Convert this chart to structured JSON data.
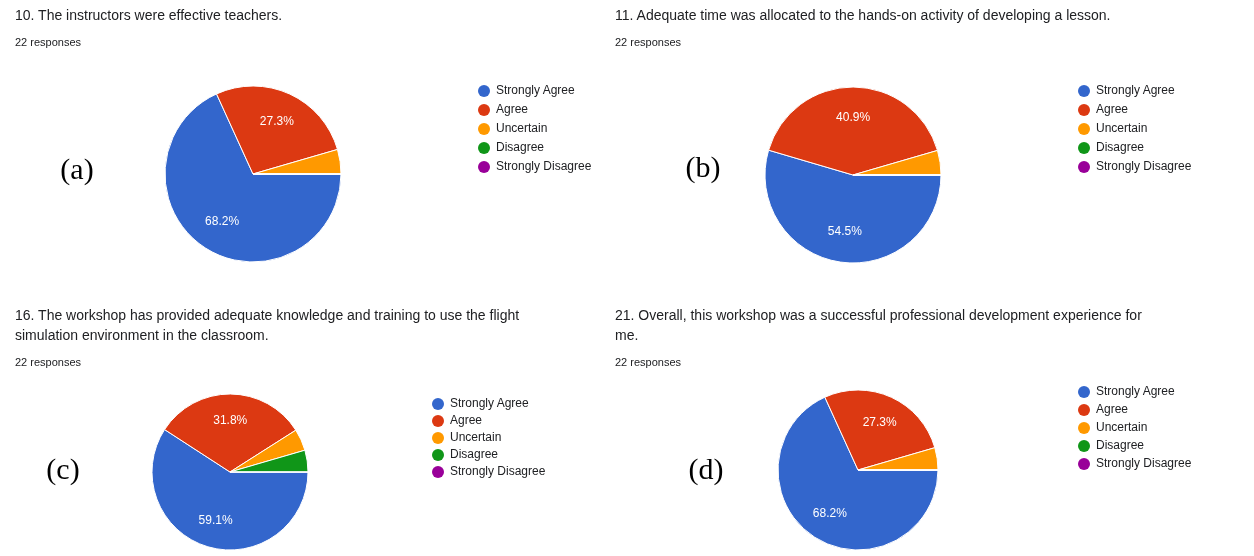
{
  "chart_data": [
    {
      "type": "pie",
      "title": "10. The instructors were effective teachers.",
      "subtitle": "22 responses",
      "categories": [
        "Strongly Agree",
        "Agree",
        "Uncertain",
        "Disagree",
        "Strongly Disagree"
      ],
      "values": [
        68.2,
        27.3,
        4.5,
        0,
        0
      ],
      "colors": [
        "#3366cc",
        "#dc3912",
        "#ff9900",
        "#109618",
        "#990099"
      ],
      "value_labels": [
        "68.2%",
        "27.3%",
        null,
        null,
        null
      ],
      "legend": "right",
      "annotations": [
        "(a)"
      ]
    },
    {
      "type": "pie",
      "title": "11. Adequate time was allocated to the hands-on activity of developing a lesson.",
      "subtitle": "22 responses",
      "categories": [
        "Strongly Agree",
        "Agree",
        "Uncertain",
        "Disagree",
        "Strongly Disagree"
      ],
      "values": [
        54.5,
        40.9,
        4.5,
        0,
        0
      ],
      "colors": [
        "#3366cc",
        "#dc3912",
        "#ff9900",
        "#109618",
        "#990099"
      ],
      "value_labels": [
        "54.5%",
        "40.9%",
        null,
        null,
        null
      ],
      "legend": "right",
      "annotations": [
        "(b)"
      ]
    },
    {
      "type": "pie",
      "title": "16. The workshop has provided adequate knowledge and training to use the flight simulation environment in the classroom.",
      "subtitle": "22 responses",
      "categories": [
        "Strongly Agree",
        "Agree",
        "Uncertain",
        "Disagree",
        "Strongly Disagree"
      ],
      "values": [
        59.1,
        31.8,
        4.5,
        4.5,
        0
      ],
      "colors": [
        "#3366cc",
        "#dc3912",
        "#ff9900",
        "#109618",
        "#990099"
      ],
      "value_labels": [
        "59.1%",
        "31.8%",
        null,
        null,
        null
      ],
      "legend": "right",
      "annotations": [
        "(c)"
      ]
    },
    {
      "type": "pie",
      "title": "21. Overall, this workshop was a successful professional development experience for me.",
      "subtitle": "22 responses",
      "categories": [
        "Strongly Agree",
        "Agree",
        "Uncertain",
        "Disagree",
        "Strongly Disagree"
      ],
      "values": [
        68.2,
        27.3,
        4.5,
        0,
        0
      ],
      "colors": [
        "#3366cc",
        "#dc3912",
        "#ff9900",
        "#109618",
        "#990099"
      ],
      "value_labels": [
        "68.2%",
        "27.3%",
        null,
        null,
        null
      ],
      "legend": "right",
      "annotations": [
        "(d)"
      ]
    }
  ]
}
